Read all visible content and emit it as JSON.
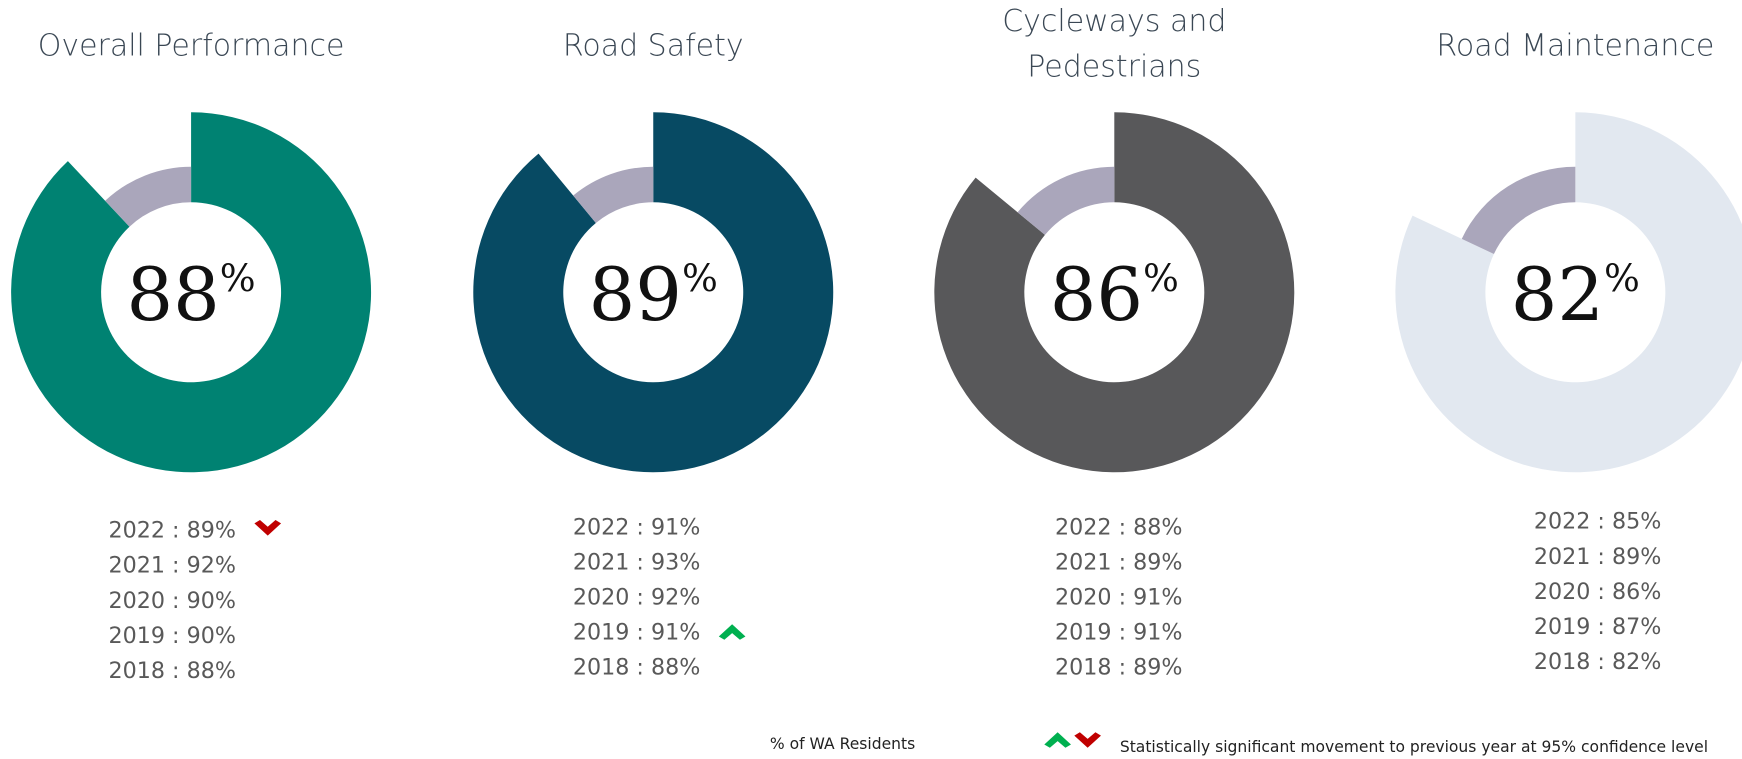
{
  "chart_data": [
    {
      "type": "donut",
      "title": [
        "Overall Performance"
      ],
      "value": 88,
      "unit": "%",
      "color": "#008272",
      "remainder_color": "#aaa6bb",
      "history": [
        "2022 : 89%",
        "2021 : 92%",
        "2020 : 90%",
        "2019 : 90%",
        "2018 : 88%"
      ],
      "movement": {
        "row": 0,
        "direction": "down"
      }
    },
    {
      "type": "donut",
      "title": [
        "Road Safety"
      ],
      "value": 89,
      "unit": "%",
      "color": "#074a63",
      "remainder_color": "#aaa6bb",
      "history": [
        "2022 : 91%",
        "2021 : 93%",
        "2020 : 92%",
        "2019 : 91%",
        "2018 : 88%"
      ],
      "movement": {
        "row": 3,
        "direction": "up"
      }
    },
    {
      "type": "donut",
      "title": [
        "Cycleways and",
        "Pedestrians"
      ],
      "value": 86,
      "unit": "%",
      "color": "#58585a",
      "remainder_color": "#aaa6bb",
      "history": [
        "2022 : 88%",
        "2021 : 89%",
        "2020 : 91%",
        "2019 : 91%",
        "2018 : 89%"
      ]
    },
    {
      "type": "donut",
      "title": [
        "Road Maintenance"
      ],
      "value": 82,
      "unit": "%",
      "color": "#e2e8f0",
      "remainder_color": "#aaa6bb",
      "history": [
        "2022 : 85%",
        "2021 : 89%",
        "2020 : 86%",
        "2019 : 87%",
        "2018 : 82%"
      ]
    }
  ],
  "footer": {
    "base": "% of WA Residents",
    "legend": "Statistically significant movement to previous year at 95% confidence level",
    "up_color": "#00b050",
    "down_color": "#c00000"
  }
}
